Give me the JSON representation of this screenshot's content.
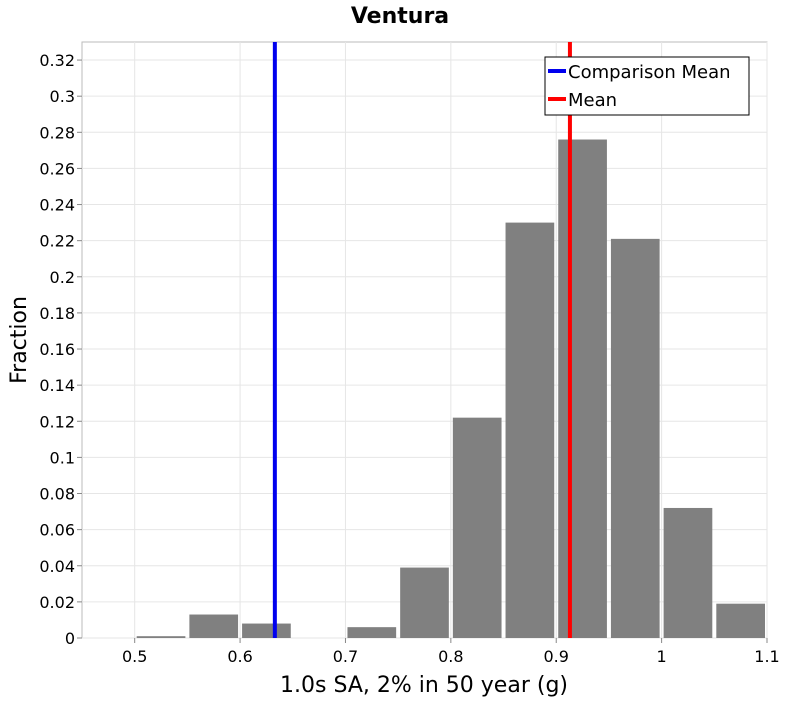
{
  "chart_data": {
    "type": "bar",
    "title": "Ventura",
    "xlabel": "1.0s SA, 2% in 50 year (g)",
    "ylabel": "Fraction",
    "xlim": [
      0.45,
      1.1
    ],
    "ylim": [
      0,
      0.33
    ],
    "x_ticks": [
      0.5,
      0.6,
      0.7,
      0.8,
      0.9,
      1.0,
      1.1
    ],
    "x_tick_labels": [
      "0.5",
      "0.6",
      "0.7",
      "0.8",
      "0.9",
      "1",
      "1.1"
    ],
    "y_ticks": [
      0,
      0.02,
      0.04,
      0.06,
      0.08,
      0.1,
      0.12,
      0.14,
      0.16,
      0.18,
      0.2,
      0.22,
      0.24,
      0.26,
      0.28,
      0.3,
      0.32
    ],
    "y_tick_labels": [
      "0",
      "0.02",
      "0.04",
      "0.06",
      "0.08",
      "0.1",
      "0.12",
      "0.14",
      "0.16",
      "0.18",
      "0.2",
      "0.22",
      "0.24",
      "0.26",
      "0.28",
      "0.3",
      "0.32"
    ],
    "bin_width": 0.05,
    "bins": [
      {
        "center": 0.525,
        "value": 0.001
      },
      {
        "center": 0.575,
        "value": 0.013
      },
      {
        "center": 0.625,
        "value": 0.008
      },
      {
        "center": 0.725,
        "value": 0.006
      },
      {
        "center": 0.775,
        "value": 0.039
      },
      {
        "center": 0.825,
        "value": 0.122
      },
      {
        "center": 0.875,
        "value": 0.23
      },
      {
        "center": 0.925,
        "value": 0.276
      },
      {
        "center": 0.975,
        "value": 0.221
      },
      {
        "center": 1.025,
        "value": 0.072
      },
      {
        "center": 1.075,
        "value": 0.019
      }
    ],
    "bar_color": "#808080",
    "vlines": [
      {
        "name": "Comparison Mean",
        "x": 0.633,
        "color": "#0000ee"
      },
      {
        "name": "Mean",
        "x": 0.913,
        "color": "#ff0000"
      }
    ],
    "legend": {
      "position": "top-right",
      "entries": [
        {
          "label": "Comparison Mean",
          "color": "#0000ee"
        },
        {
          "label": "Mean",
          "color": "#ff0000"
        }
      ]
    },
    "grid": true
  }
}
